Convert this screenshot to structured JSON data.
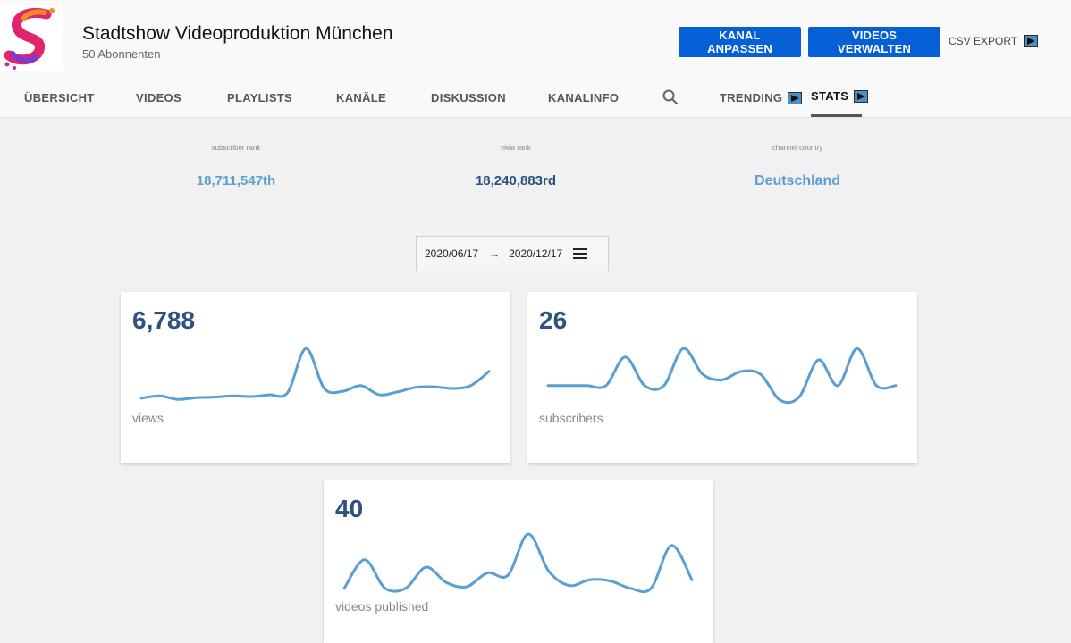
{
  "channel": {
    "name": "Stadtshow Videoproduktion München",
    "subscribers": "50 Abonnenten"
  },
  "actions": {
    "customize": "KANAL ANPASSEN",
    "manage": "VIDEOS VERWALTEN",
    "csv": "CSV EXPORT"
  },
  "tabs": [
    {
      "label": "ÜBERSICHT"
    },
    {
      "label": "VIDEOS"
    },
    {
      "label": "PLAYLISTS"
    },
    {
      "label": "KANÄLE"
    },
    {
      "label": "DISKUSSION"
    },
    {
      "label": "KANALINFO"
    },
    {
      "label": "TRENDING"
    },
    {
      "label": "STATS",
      "active": true
    }
  ],
  "stats": [
    {
      "label": "subscriber rank",
      "value": "18,711,547th",
      "color": "#5a9fd4"
    },
    {
      "label": "view rank",
      "value": "18,240,883rd",
      "color": "#2c5282"
    },
    {
      "label": "channel country",
      "value": "Deutschland",
      "color": "#5a9fd4"
    }
  ],
  "date_range": {
    "from": "2020/06/17",
    "to": "2020/12/17"
  },
  "cards": [
    {
      "value": "6,788",
      "label": "views",
      "trend": [
        0.08,
        0.12,
        0.06,
        0.09,
        0.1,
        0.12,
        0.11,
        0.14,
        0.18,
        0.95,
        0.25,
        0.2,
        0.3,
        0.14,
        0.19,
        0.27,
        0.28,
        0.25,
        0.3,
        0.55
      ]
    },
    {
      "value": "26",
      "label": "subscribers",
      "trend": [
        0.3,
        0.3,
        0.3,
        0.3,
        0.8,
        0.3,
        0.3,
        0.95,
        0.5,
        0.4,
        0.55,
        0.5,
        0.05,
        0.1,
        0.75,
        0.3,
        0.95,
        0.3,
        0.3
      ]
    },
    {
      "value": "40",
      "label": "videos published",
      "trend": [
        0.05,
        0.55,
        0.05,
        0.05,
        0.42,
        0.15,
        0.08,
        0.32,
        0.28,
        1.0,
        0.35,
        0.1,
        0.2,
        0.18,
        0.05,
        0.05,
        0.8,
        0.2
      ]
    }
  ],
  "accent_color": "#5a9fd4"
}
